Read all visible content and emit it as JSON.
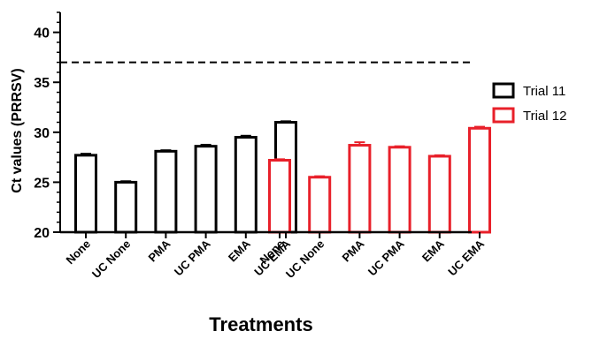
{
  "chart_data": {
    "type": "bar",
    "title": "",
    "xlabel": "Treatments",
    "ylabel": "Ct values (PRRSV)",
    "ylim": [
      20,
      42
    ],
    "yticks": [
      20,
      25,
      30,
      35,
      40
    ],
    "reference_line": 37,
    "grid": false,
    "legend_position": "right",
    "series": [
      {
        "name": "Trial 11",
        "color": "#000000",
        "categories": [
          "None",
          "UC None",
          "PMA",
          "UC PMA",
          "EMA",
          "UC EMA"
        ],
        "values": [
          27.7,
          25.0,
          28.1,
          28.6,
          29.5,
          31.0
        ],
        "errors": [
          0.15,
          0.1,
          0.1,
          0.15,
          0.15,
          0.1
        ]
      },
      {
        "name": "Trial 12",
        "color": "#e8202a",
        "categories": [
          "None",
          "UC None",
          "PMA",
          "UC PMA",
          "EMA",
          "UC EMA"
        ],
        "values": [
          27.2,
          25.5,
          28.7,
          28.5,
          27.6,
          30.4
        ],
        "errors": [
          0.1,
          0.1,
          0.3,
          0.1,
          0.1,
          0.15
        ]
      }
    ]
  }
}
